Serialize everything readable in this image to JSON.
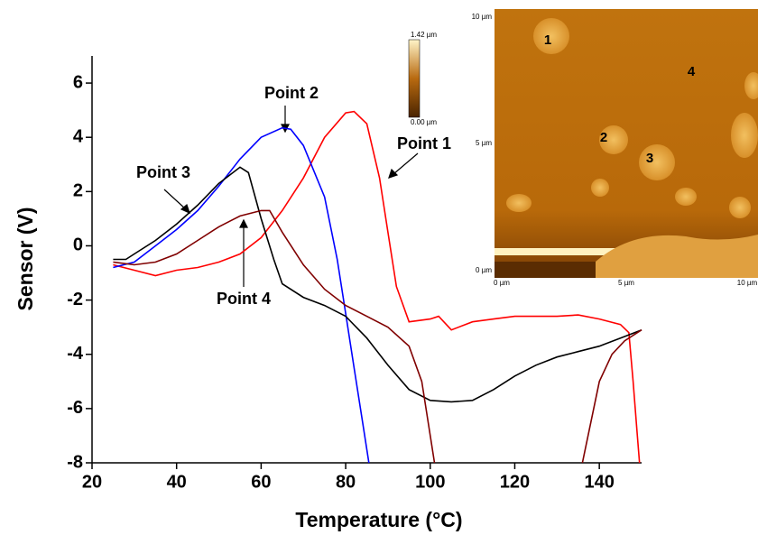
{
  "chart_data": {
    "type": "line",
    "xlabel": "Temperature (°C)",
    "ylabel": "Sensor (V)",
    "xlim": [
      20,
      150
    ],
    "xticks": [
      20,
      40,
      60,
      80,
      100,
      120,
      140
    ],
    "ylim": [
      -8,
      7
    ],
    "yticks": [
      -8,
      -6,
      -4,
      -2,
      0,
      2,
      4,
      6
    ],
    "series": [
      {
        "name": "Point 1",
        "color": "#ff0000",
        "x": [
          25,
          30,
          35,
          40,
          45,
          50,
          55,
          60,
          65,
          70,
          75,
          80,
          82,
          85,
          88,
          90,
          92,
          95,
          100,
          102,
          105,
          110,
          115,
          120,
          125,
          130,
          135,
          140,
          145,
          147,
          148,
          149,
          149.5
        ],
        "values": [
          -0.7,
          -0.9,
          -1.1,
          -0.9,
          -0.8,
          -0.6,
          -0.3,
          0.3,
          1.3,
          2.5,
          4.0,
          4.9,
          4.95,
          4.5,
          2.5,
          0.5,
          -1.5,
          -2.8,
          -2.7,
          -2.6,
          -3.1,
          -2.8,
          -2.7,
          -2.6,
          -2.6,
          -2.6,
          -2.55,
          -2.7,
          -2.9,
          -3.2,
          -5,
          -7,
          -8
        ]
      },
      {
        "name": "Point 2",
        "color": "#0000ff",
        "x": [
          25,
          30,
          35,
          40,
          45,
          50,
          55,
          60,
          65,
          67,
          70,
          75,
          78,
          80,
          82,
          84,
          85.5
        ],
        "values": [
          -0.8,
          -0.6,
          0.0,
          0.6,
          1.3,
          2.2,
          3.2,
          4.0,
          4.35,
          4.3,
          3.7,
          1.8,
          -0.5,
          -2.5,
          -4.5,
          -6.5,
          -8
        ]
      },
      {
        "name": "Point 3",
        "color": "#000000",
        "x": [
          25,
          28,
          30,
          35,
          40,
          45,
          50,
          55,
          57,
          60,
          63,
          65,
          70,
          75,
          80,
          85,
          90,
          95,
          100,
          105,
          110,
          115,
          120,
          125,
          130,
          135,
          140,
          145,
          150
        ],
        "values": [
          -0.5,
          -0.5,
          -0.3,
          0.2,
          0.8,
          1.5,
          2.3,
          2.9,
          2.7,
          1.0,
          -0.5,
          -1.4,
          -1.9,
          -2.2,
          -2.6,
          -3.4,
          -4.4,
          -5.3,
          -5.7,
          -5.75,
          -5.7,
          -5.3,
          -4.8,
          -4.4,
          -4.1,
          -3.9,
          -3.7,
          -3.4,
          -3.1
        ]
      },
      {
        "name": "Point 4",
        "color": "#800000",
        "x": [
          25,
          30,
          35,
          40,
          45,
          50,
          55,
          60,
          62,
          65,
          70,
          75,
          80,
          85,
          90,
          95,
          98,
          100,
          101,
          120,
          136,
          138,
          140,
          143,
          146,
          150
        ],
        "values": [
          -0.6,
          -0.7,
          -0.6,
          -0.3,
          0.2,
          0.7,
          1.1,
          1.3,
          1.3,
          0.5,
          -0.7,
          -1.6,
          -2.2,
          -2.6,
          -3.0,
          -3.7,
          -5,
          -7,
          -8,
          null,
          -8,
          -6.5,
          -5,
          -4,
          -3.5,
          -3.1
        ]
      }
    ]
  },
  "inset": {
    "colorbar_max": "1.42 µm",
    "colorbar_min": "0.00 µm",
    "y_labels": [
      "10 µm",
      "5 µm",
      "0 µm"
    ],
    "x_labels": [
      "0 µm",
      "5 µm",
      "10 µm"
    ],
    "points": [
      "1",
      "2",
      "3",
      "4"
    ]
  }
}
